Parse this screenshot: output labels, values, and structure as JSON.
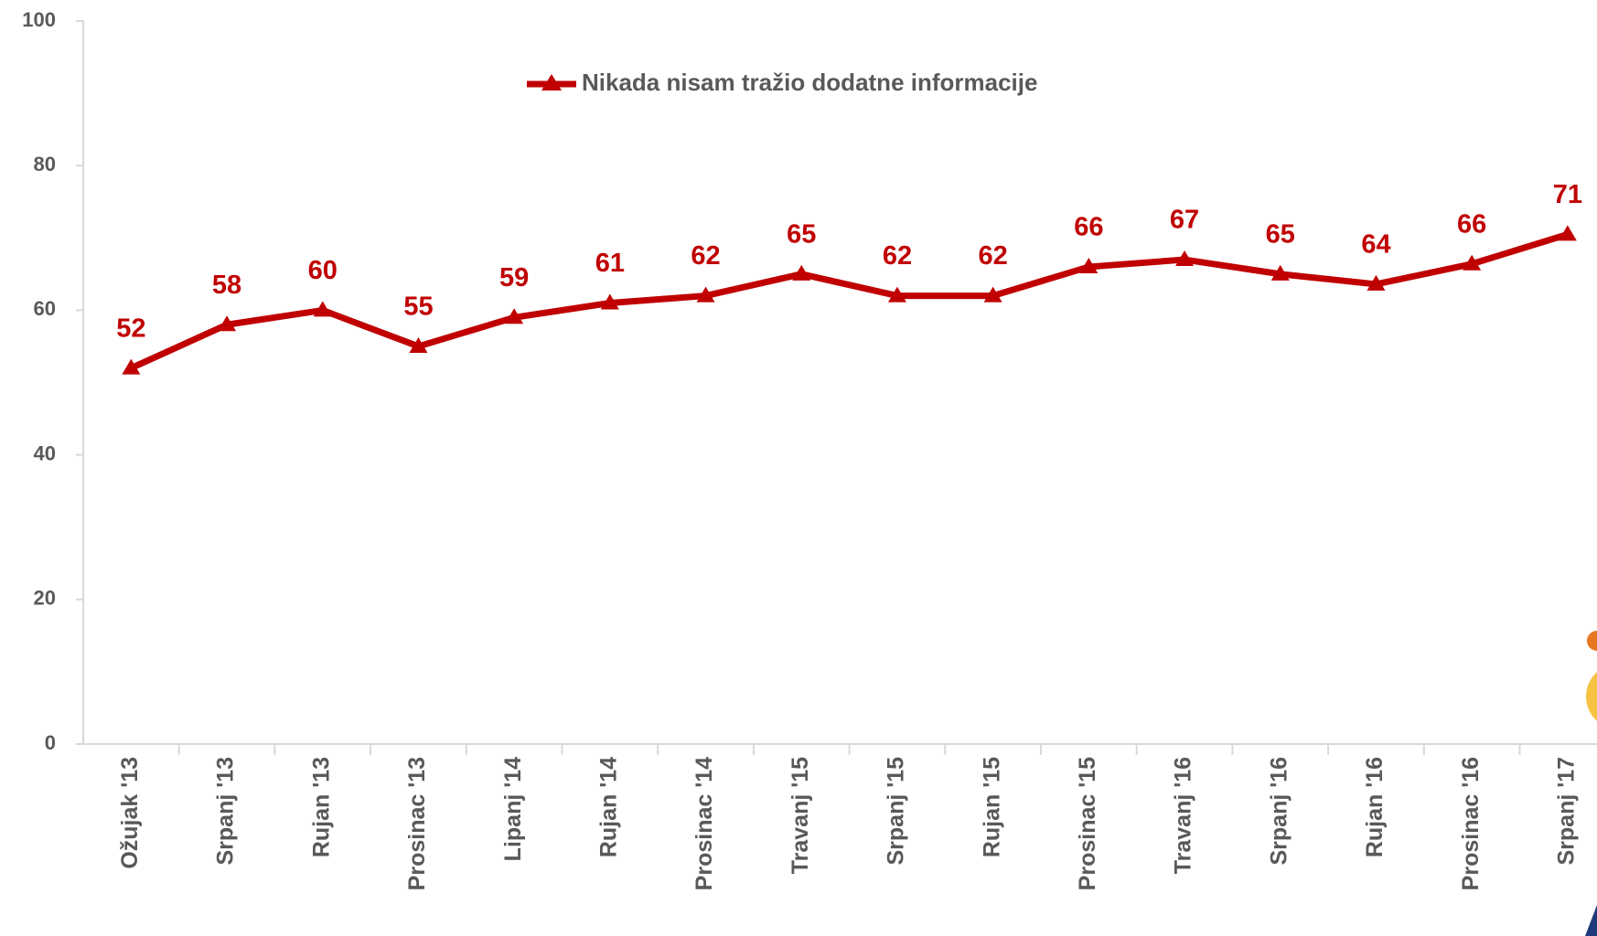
{
  "chart_data": {
    "type": "line",
    "categories": [
      "Ožujak '13",
      "Srpanj '13",
      "Rujan '13",
      "Prosinac '13",
      "Lipanj '14",
      "Rujan '14",
      "Prosinac '14",
      "Travanj '15",
      "Srpanj '15",
      "Rujan '15",
      "Prosinac '15",
      "Travanj '16",
      "Srpanj '16",
      "Rujan '16",
      "Prosinac '16",
      "Srpanj '17"
    ],
    "series": [
      {
        "name": "Nikada nisam tražio dodatne informacije",
        "color": "#c00000",
        "values": [
          52,
          58,
          60,
          55,
          59,
          61,
          62,
          65,
          62,
          62,
          66,
          67,
          65,
          63.6,
          66.4,
          70.5
        ],
        "value_labels": [
          "52",
          "58",
          "60",
          "55",
          "59",
          "61",
          "62",
          "65",
          "62",
          "62",
          "66",
          "67",
          "65",
          "64",
          "66",
          "71"
        ]
      }
    ],
    "ylim": [
      0,
      100
    ],
    "yticks": [
      0,
      20,
      40,
      60,
      80,
      100
    ],
    "legend": "top"
  }
}
